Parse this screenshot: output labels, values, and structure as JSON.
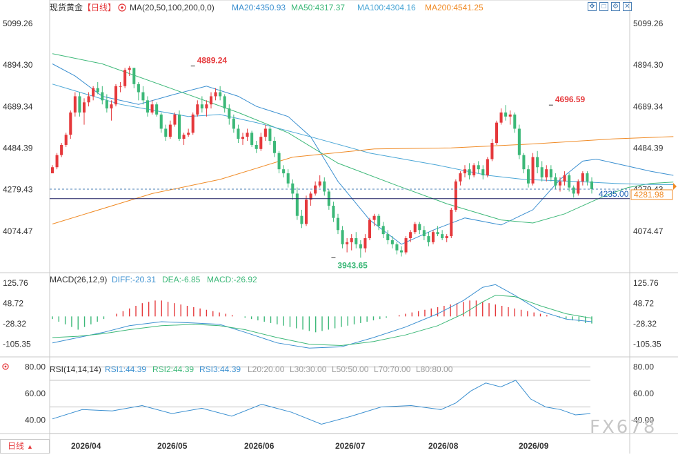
{
  "header": {
    "instrument": "现货黄金",
    "period_tag": "【日线】",
    "ma_indicator": "MA(20,50,100,200,0,0)",
    "ma_values": [
      {
        "label": "MA20:4350.93",
        "color": "#3a8fd0"
      },
      {
        "label": "MA50:4317.37",
        "color": "#3cb878"
      },
      {
        "label": "MA100:4304.16",
        "color": "#4aa6d6"
      },
      {
        "label": "MA200:4541.25",
        "color": "#f08a24"
      }
    ],
    "toolbar_icons": [
      "move-icon",
      "zoom-icon",
      "settings-icon",
      "close-icon"
    ]
  },
  "macd_header": {
    "name": "MACD(26,12,9)",
    "values": [
      {
        "label": "DIFF:-20.31",
        "color": "#3a8fd0"
      },
      {
        "label": "DEA:-6.85",
        "color": "#3cb878"
      },
      {
        "label": "MACD:-26.92",
        "color": "#3cb878"
      }
    ]
  },
  "rsi_header": {
    "name": "RSI(14,14,14)",
    "values": [
      {
        "label": "RSI1:44.39",
        "color": "#3a8fd0"
      },
      {
        "label": "RSI2:44.39",
        "color": "#3cb878"
      },
      {
        "label": "RSI3:44.39",
        "color": "#3a8fd0"
      },
      {
        "label": "L20:20.00",
        "color": "#999999"
      },
      {
        "label": "L30:30.00",
        "color": "#999999"
      },
      {
        "label": "L50:50.00",
        "color": "#999999"
      },
      {
        "label": "L70:70.00",
        "color": "#999999"
      },
      {
        "label": "L80:80.00",
        "color": "#999999"
      }
    ]
  },
  "period_button": "日线",
  "watermark": "FX678",
  "chart_data": {
    "type": "candlestick",
    "colors": {
      "up": "#e5383b",
      "down": "#3cb878"
    },
    "x_labels": [
      "2026/04",
      "2026/05",
      "2026/06",
      "2026/07",
      "2026/08",
      "2026/09"
    ],
    "price_axis": {
      "ticks": [
        "5099.26",
        "4894.30",
        "4689.34",
        "4484.39",
        "4279.43",
        "4074.47"
      ],
      "range": [
        3880,
        5140
      ]
    },
    "annotations": [
      {
        "text": "4889.24",
        "value": 4889.24,
        "bar": 31,
        "color": "#e5383b"
      },
      {
        "text": "4696.59",
        "value": 4696.59,
        "bar": 110,
        "color": "#e5383b"
      },
      {
        "text": "3943.65",
        "value": 3943.65,
        "bar": 62,
        "color": "#3cb878"
      }
    ],
    "current_price": {
      "text": "4281.98",
      "value": 4281.98
    },
    "reference_line": {
      "text": "4235.00",
      "value": 4235.0
    },
    "ma_series": {
      "MA20": {
        "color": "#3a8fd0",
        "points": [
          [
            0,
            4900
          ],
          [
            5,
            4840
          ],
          [
            11,
            4740
          ],
          [
            19,
            4700
          ],
          [
            27,
            4750
          ],
          [
            34,
            4790
          ],
          [
            41,
            4740
          ],
          [
            45,
            4690
          ],
          [
            52,
            4640
          ],
          [
            57,
            4540
          ],
          [
            63,
            4320
          ],
          [
            70,
            4130
          ],
          [
            77,
            4010
          ],
          [
            84,
            4080
          ],
          [
            91,
            4140
          ],
          [
            99,
            4105
          ],
          [
            106,
            4180
          ],
          [
            112,
            4330
          ],
          [
            117,
            4420
          ],
          [
            120,
            4430
          ],
          [
            126,
            4400
          ],
          [
            132,
            4370
          ],
          [
            137,
            4350
          ]
        ]
      },
      "MA50": {
        "color": "#3cb878",
        "points": [
          [
            0,
            4950
          ],
          [
            11,
            4900
          ],
          [
            26,
            4780
          ],
          [
            41,
            4660
          ],
          [
            52,
            4560
          ],
          [
            63,
            4410
          ],
          [
            76,
            4300
          ],
          [
            87,
            4210
          ],
          [
            99,
            4130
          ],
          [
            106,
            4115
          ],
          [
            113,
            4160
          ],
          [
            118,
            4210
          ],
          [
            122,
            4250
          ],
          [
            127,
            4290
          ],
          [
            132,
            4310
          ],
          [
            137,
            4317
          ]
        ]
      },
      "MA100": {
        "color": "#4aa6d6",
        "points": [
          [
            0,
            4800
          ],
          [
            15,
            4700
          ],
          [
            30,
            4640
          ],
          [
            37,
            4650
          ],
          [
            45,
            4610
          ],
          [
            57,
            4540
          ],
          [
            70,
            4460
          ],
          [
            85,
            4400
          ],
          [
            96,
            4350
          ],
          [
            104,
            4330
          ],
          [
            115,
            4320
          ],
          [
            124,
            4310
          ],
          [
            132,
            4305
          ],
          [
            137,
            4304
          ]
        ]
      },
      "MA200": {
        "color": "#f08a24",
        "points": [
          [
            0,
            4110
          ],
          [
            22,
            4260
          ],
          [
            37,
            4330
          ],
          [
            53,
            4440
          ],
          [
            71,
            4480
          ],
          [
            88,
            4485
          ],
          [
            106,
            4505
          ],
          [
            124,
            4530
          ],
          [
            137,
            4541
          ]
        ]
      }
    },
    "candles": [
      [
        4360,
        4400,
        4360,
        4390
      ],
      [
        4390,
        4460,
        4380,
        4450
      ],
      [
        4450,
        4510,
        4440,
        4500
      ],
      [
        4500,
        4560,
        4490,
        4550
      ],
      [
        4550,
        4670,
        4530,
        4660
      ],
      [
        4660,
        4760,
        4640,
        4740
      ],
      [
        4740,
        4760,
        4640,
        4660
      ],
      [
        4660,
        4730,
        4600,
        4710
      ],
      [
        4710,
        4760,
        4690,
        4740
      ],
      [
        4740,
        4790,
        4720,
        4780
      ],
      [
        4780,
        4810,
        4750,
        4760
      ],
      [
        4760,
        4790,
        4700,
        4720
      ],
      [
        4720,
        4750,
        4660,
        4680
      ],
      [
        4680,
        4720,
        4620,
        4700
      ],
      [
        4700,
        4800,
        4690,
        4790
      ],
      [
        4790,
        4810,
        4760,
        4790
      ],
      [
        4790,
        4880,
        4780,
        4870
      ],
      [
        4870,
        4889.24,
        4840,
        4880
      ],
      [
        4880,
        4880,
        4780,
        4800
      ],
      [
        4800,
        4810,
        4720,
        4760
      ],
      [
        4760,
        4790,
        4700,
        4720
      ],
      [
        4720,
        4740,
        4640,
        4660
      ],
      [
        4660,
        4720,
        4650,
        4700
      ],
      [
        4700,
        4710,
        4640,
        4650
      ],
      [
        4650,
        4660,
        4560,
        4580
      ],
      [
        4580,
        4600,
        4520,
        4540
      ],
      [
        4540,
        4620,
        4530,
        4600
      ],
      [
        4600,
        4660,
        4590,
        4650
      ],
      [
        4650,
        4670,
        4520,
        4530
      ],
      [
        4530,
        4560,
        4500,
        4550
      ],
      [
        4550,
        4580,
        4540,
        4560
      ],
      [
        4560,
        4660,
        4550,
        4650
      ],
      [
        4650,
        4720,
        4640,
        4700
      ],
      [
        4700,
        4740,
        4660,
        4680
      ],
      [
        4680,
        4720,
        4640,
        4700
      ],
      [
        4700,
        4760,
        4680,
        4740
      ],
      [
        4740,
        4780,
        4720,
        4760
      ],
      [
        4760,
        4790,
        4720,
        4740
      ],
      [
        4740,
        4750,
        4660,
        4680
      ],
      [
        4680,
        4700,
        4600,
        4630
      ],
      [
        4630,
        4650,
        4560,
        4580
      ],
      [
        4580,
        4600,
        4510,
        4530
      ],
      [
        4530,
        4560,
        4500,
        4540
      ],
      [
        4540,
        4580,
        4520,
        4560
      ],
      [
        4560,
        4570,
        4490,
        4500
      ],
      [
        4500,
        4520,
        4460,
        4480
      ],
      [
        4480,
        4560,
        4470,
        4540
      ],
      [
        4540,
        4600,
        4520,
        4580
      ],
      [
        4580,
        4590,
        4500,
        4520
      ],
      [
        4520,
        4540,
        4440,
        4460
      ],
      [
        4460,
        4470,
        4360,
        4380
      ],
      [
        4380,
        4400,
        4340,
        4360
      ],
      [
        4360,
        4380,
        4290,
        4310
      ],
      [
        4310,
        4330,
        4230,
        4260
      ],
      [
        4260,
        4290,
        4130,
        4150
      ],
      [
        4150,
        4180,
        4090,
        4110
      ],
      [
        4110,
        4250,
        4100,
        4230
      ],
      [
        4230,
        4270,
        4200,
        4260
      ],
      [
        4260,
        4320,
        4250,
        4300
      ],
      [
        4300,
        4350,
        4290,
        4320
      ],
      [
        4320,
        4340,
        4250,
        4270
      ],
      [
        4270,
        4280,
        4180,
        4200
      ],
      [
        4200,
        4220,
        4120,
        4140
      ],
      [
        4140,
        4160,
        4060,
        4080
      ],
      [
        4080,
        4100,
        3990,
        4010
      ],
      [
        4010,
        4040,
        3970,
        4020
      ],
      [
        4020,
        4060,
        3980,
        4040
      ],
      [
        4040,
        4070,
        3990,
        4010
      ],
      [
        4010,
        4030,
        3943.65,
        3990
      ],
      [
        3990,
        4060,
        3970,
        4040
      ],
      [
        4040,
        4140,
        4030,
        4130
      ],
      [
        4130,
        4160,
        4100,
        4150
      ],
      [
        4150,
        4160,
        4080,
        4100
      ],
      [
        4100,
        4120,
        4040,
        4060
      ],
      [
        4060,
        4080,
        4010,
        4030
      ],
      [
        4030,
        4050,
        3990,
        4010
      ],
      [
        4010,
        4020,
        3960,
        3980
      ],
      [
        3980,
        4000,
        3950,
        3970
      ],
      [
        3970,
        4050,
        3960,
        4040
      ],
      [
        4040,
        4080,
        4020,
        4070
      ],
      [
        4070,
        4120,
        4060,
        4110
      ],
      [
        4110,
        4120,
        4060,
        4080
      ],
      [
        4080,
        4100,
        4030,
        4050
      ],
      [
        4050,
        4070,
        4000,
        4020
      ],
      [
        4020,
        4080,
        4010,
        4070
      ],
      [
        4070,
        4100,
        4050,
        4060
      ],
      [
        4060,
        4080,
        4030,
        4040
      ],
      [
        4040,
        4060,
        4020,
        4050
      ],
      [
        4050,
        4190,
        4040,
        4180
      ],
      [
        4180,
        4330,
        4170,
        4320
      ],
      [
        4320,
        4370,
        4300,
        4360
      ],
      [
        4360,
        4400,
        4340,
        4380
      ],
      [
        4380,
        4410,
        4330,
        4350
      ],
      [
        4350,
        4410,
        4340,
        4400
      ],
      [
        4400,
        4420,
        4360,
        4380
      ],
      [
        4380,
        4400,
        4330,
        4350
      ],
      [
        4350,
        4440,
        4340,
        4430
      ],
      [
        4430,
        4530,
        4420,
        4510
      ],
      [
        4510,
        4620,
        4500,
        4610
      ],
      [
        4610,
        4680,
        4600,
        4660
      ],
      [
        4660,
        4696.59,
        4620,
        4640
      ],
      [
        4640,
        4670,
        4600,
        4650
      ],
      [
        4650,
        4660,
        4560,
        4580
      ],
      [
        4580,
        4600,
        4430,
        4450
      ],
      [
        4450,
        4460,
        4360,
        4380
      ],
      [
        4380,
        4400,
        4290,
        4310
      ],
      [
        4310,
        4460,
        4300,
        4440
      ],
      [
        4440,
        4470,
        4360,
        4390
      ],
      [
        4390,
        4420,
        4320,
        4340
      ],
      [
        4340,
        4400,
        4320,
        4380
      ],
      [
        4380,
        4400,
        4320,
        4340
      ],
      [
        4340,
        4360,
        4280,
        4300
      ],
      [
        4300,
        4340,
        4270,
        4320
      ],
      [
        4320,
        4370,
        4300,
        4350
      ],
      [
        4350,
        4360,
        4270,
        4290
      ],
      [
        4290,
        4300,
        4240,
        4260
      ],
      [
        4260,
        4330,
        4250,
        4320
      ],
      [
        4320,
        4370,
        4300,
        4360
      ],
      [
        4360,
        4370,
        4300,
        4320
      ],
      [
        4320,
        4340,
        4260,
        4281.98
      ]
    ],
    "macd": {
      "axis_ticks": [
        "125.76",
        "48.72",
        "-28.32",
        "-105.35"
      ],
      "range": [
        -140,
        160
      ],
      "DIFF": [
        [
          0,
          -100
        ],
        [
          8,
          -80
        ],
        [
          16,
          -60
        ],
        [
          24,
          -35
        ],
        [
          34,
          -20
        ],
        [
          44,
          -25
        ],
        [
          52,
          -30
        ],
        [
          60,
          -60
        ],
        [
          70,
          -100
        ],
        [
          80,
          -120
        ],
        [
          90,
          -115
        ],
        [
          100,
          -80
        ],
        [
          110,
          -40
        ],
        [
          120,
          10
        ],
        [
          128,
          60
        ],
        [
          134,
          110
        ],
        [
          138,
          120
        ],
        [
          144,
          80
        ],
        [
          152,
          20
        ],
        [
          160,
          -10
        ],
        [
          168,
          -20
        ]
      ],
      "DEA": [
        [
          0,
          -80
        ],
        [
          8,
          -75
        ],
        [
          16,
          -65
        ],
        [
          24,
          -50
        ],
        [
          34,
          -35
        ],
        [
          44,
          -30
        ],
        [
          52,
          -35
        ],
        [
          60,
          -50
        ],
        [
          70,
          -80
        ],
        [
          80,
          -105
        ],
        [
          90,
          -110
        ],
        [
          100,
          -95
        ],
        [
          110,
          -70
        ],
        [
          120,
          -35
        ],
        [
          128,
          10
        ],
        [
          134,
          55
        ],
        [
          138,
          80
        ],
        [
          144,
          75
        ],
        [
          152,
          40
        ],
        [
          160,
          10
        ],
        [
          168,
          -7
        ]
      ],
      "histogram": [
        -10,
        -20,
        -30,
        -40,
        -50,
        -40,
        -30,
        -20,
        -10,
        0,
        10,
        20,
        30,
        40,
        50,
        55,
        60,
        60,
        55,
        50,
        45,
        40,
        35,
        30,
        25,
        20,
        15,
        10,
        5,
        0,
        -5,
        -10,
        -15,
        -20,
        -25,
        -30,
        -35,
        -40,
        -45,
        -50,
        -55,
        -60,
        -55,
        -50,
        -45,
        -40,
        -35,
        -30,
        -25,
        -20,
        -15,
        -10,
        -5,
        0,
        5,
        10,
        15,
        20,
        25,
        30,
        35,
        40,
        45,
        50,
        55,
        60,
        60,
        55,
        50,
        45,
        40,
        35,
        30,
        25,
        20,
        15,
        10,
        5,
        0,
        -5,
        -10,
        -15,
        -20,
        -25,
        -27
      ]
    },
    "rsi": {
      "axis_ticks": [
        "80.00",
        "60.00",
        "40.00"
      ],
      "range": [
        30,
        85
      ],
      "RSI1": [
        [
          0,
          41
        ],
        [
          10,
          48
        ],
        [
          20,
          47
        ],
        [
          30,
          51
        ],
        [
          40,
          45
        ],
        [
          50,
          49
        ],
        [
          60,
          43
        ],
        [
          70,
          52
        ],
        [
          80,
          46
        ],
        [
          90,
          37
        ],
        [
          100,
          43
        ],
        [
          110,
          50
        ],
        [
          120,
          51
        ],
        [
          130,
          48
        ],
        [
          135,
          53
        ],
        [
          140,
          62
        ],
        [
          145,
          68
        ],
        [
          150,
          65
        ],
        [
          155,
          70
        ],
        [
          160,
          56
        ],
        [
          165,
          50
        ],
        [
          170,
          48
        ],
        [
          175,
          44
        ],
        [
          180,
          45
        ]
      ]
    }
  }
}
